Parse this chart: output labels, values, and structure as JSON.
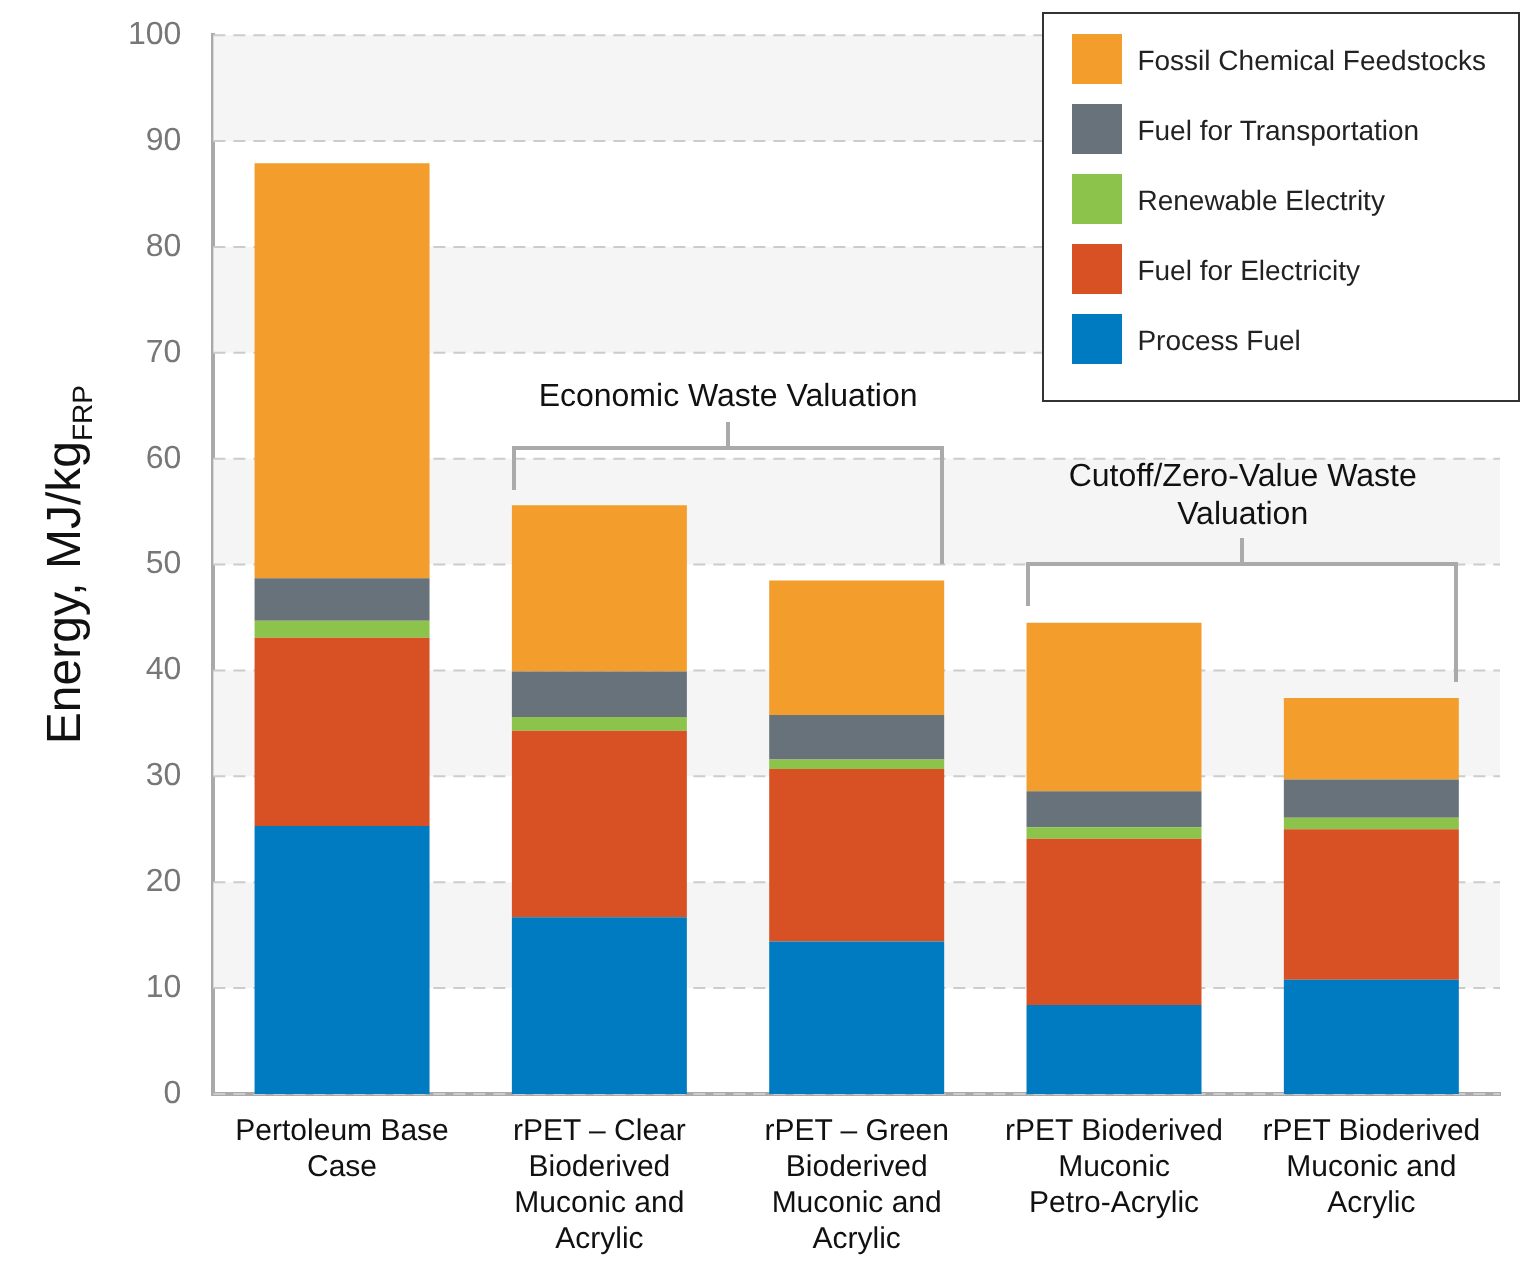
{
  "chart_data": {
    "type": "bar",
    "stacked": true,
    "ylabel": "Energy, MJ/kg$_{FRP}$",
    "categories": [
      "Pertoleum Base Case",
      "rPET – Clear Bioderived Muconic and Acrylic",
      "rPET – Green Bioderived Muconic and Acrylic",
      "rPET Bioderived Muconic Petro-Acrylic",
      "rPET Bioderived Muconic and Acrylic"
    ],
    "series": [
      {
        "name": "Process Fuel",
        "color": "#007ac1",
        "values": [
          25.3,
          16.7,
          14.4,
          8.4,
          10.8
        ]
      },
      {
        "name": "Fuel for Electricity",
        "color": "#d75125",
        "values": [
          17.8,
          17.6,
          16.3,
          15.7,
          14.2
        ]
      },
      {
        "name": "Renewable Electrity",
        "color": "#8cc34a",
        "values": [
          1.6,
          1.3,
          0.9,
          1.1,
          1.1
        ]
      },
      {
        "name": "Fuel for Transportation",
        "color": "#68727a",
        "values": [
          4.0,
          4.3,
          4.2,
          3.4,
          3.6
        ]
      },
      {
        "name": "Fossil Chemical Feedstocks",
        "color": "#f39d2c",
        "values": [
          39.2,
          15.7,
          12.7,
          15.9,
          7.7
        ]
      }
    ],
    "ylim": [
      0,
      100
    ],
    "yticks": [
      0,
      10,
      20,
      30,
      40,
      50,
      60,
      70,
      80,
      90,
      100
    ],
    "grid": "y",
    "legend": "top right",
    "annotations": [
      "Economic Waste Valuation",
      "Cutoff/Zero-Value Waste Valuation"
    ]
  }
}
